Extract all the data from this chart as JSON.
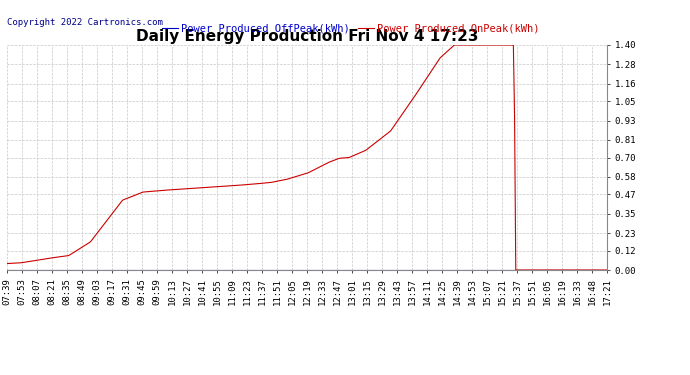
{
  "title": "Daily Energy Production Fri Nov 4 17:23",
  "copyright_text": "Copyright 2022 Cartronics.com",
  "legend_offpeak": "Power Produced OffPeak(kWh)",
  "legend_onpeak": "Power Produced OnPeak(kWh)",
  "background_color": "#ffffff",
  "grid_color": "#c8c8c8",
  "line_color_offpeak": "#0000cc",
  "line_color_onpeak": "#cc0000",
  "title_fontsize": 11,
  "copyright_fontsize": 6.5,
  "legend_fontsize": 7.5,
  "tick_fontsize": 6.5,
  "ytick_labels": [
    "0.00",
    "0.12",
    "0.23",
    "0.35",
    "0.47",
    "0.58",
    "0.70",
    "0.81",
    "0.93",
    "1.05",
    "1.16",
    "1.28",
    "1.40"
  ],
  "ytick_values": [
    0.0,
    0.12,
    0.23,
    0.35,
    0.47,
    0.58,
    0.7,
    0.81,
    0.93,
    1.05,
    1.16,
    1.28,
    1.4
  ],
  "ylim": [
    0.0,
    1.4
  ],
  "x_tick_labels": [
    "07:39",
    "07:53",
    "08:07",
    "08:21",
    "08:35",
    "08:49",
    "09:03",
    "09:17",
    "09:31",
    "09:45",
    "09:59",
    "10:13",
    "10:27",
    "10:41",
    "10:55",
    "11:09",
    "11:23",
    "11:37",
    "11:51",
    "12:05",
    "12:19",
    "12:33",
    "12:47",
    "13:01",
    "13:15",
    "13:29",
    "13:43",
    "13:57",
    "14:11",
    "14:25",
    "14:39",
    "14:53",
    "15:07",
    "15:21",
    "15:37",
    "15:51",
    "16:05",
    "16:19",
    "16:33",
    "16:48",
    "17:21"
  ],
  "keypoints_t": [
    0.0,
    0.23,
    0.47,
    0.72,
    1.0,
    1.35,
    1.87,
    2.2,
    2.5,
    2.87,
    3.27,
    3.67,
    4.0,
    4.27,
    4.53,
    4.87,
    5.2,
    5.37,
    5.53,
    5.8,
    6.2,
    6.57,
    7.0,
    7.23,
    8.0,
    8.2,
    8.21,
    9.7
  ],
  "keypoints_v": [
    0.04,
    0.045,
    0.06,
    0.075,
    0.09,
    0.175,
    0.435,
    0.485,
    0.495,
    0.505,
    0.515,
    0.525,
    0.535,
    0.545,
    0.565,
    0.605,
    0.67,
    0.695,
    0.7,
    0.745,
    0.865,
    1.07,
    1.32,
    1.4,
    1.4,
    1.4,
    0.0,
    0.0
  ]
}
